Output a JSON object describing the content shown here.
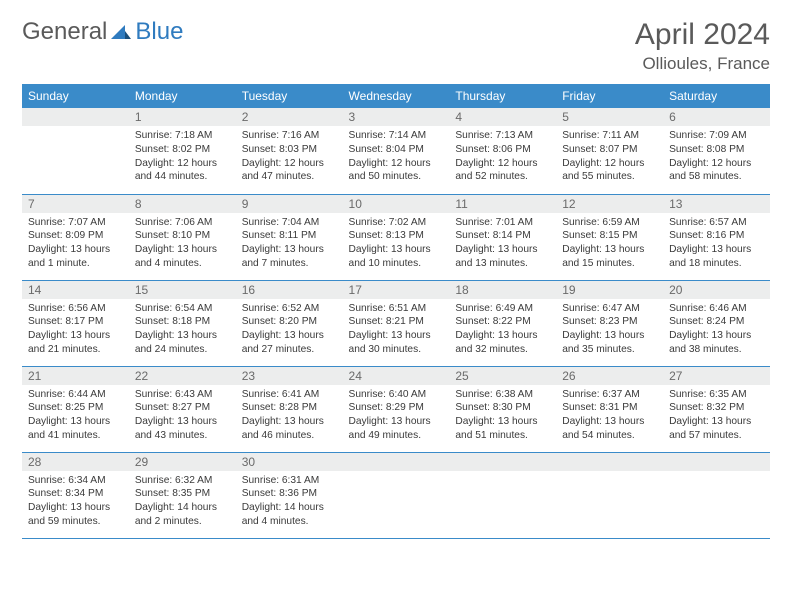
{
  "brand": {
    "part1": "General",
    "part2": "Blue"
  },
  "title": "April 2024",
  "location": "Ollioules, France",
  "colors": {
    "header_bg": "#3a8bc9",
    "header_text": "#ffffff",
    "daynum_bg": "#eceded",
    "daynum_text": "#6a6a6a",
    "border": "#3a8bc9",
    "logo_gray": "#5a5a5a",
    "logo_blue": "#2f7bbf"
  },
  "weekdays": [
    "Sunday",
    "Monday",
    "Tuesday",
    "Wednesday",
    "Thursday",
    "Friday",
    "Saturday"
  ],
  "weeks": [
    [
      {
        "n": "",
        "lines": [
          "",
          "",
          "",
          ""
        ]
      },
      {
        "n": "1",
        "lines": [
          "Sunrise: 7:18 AM",
          "Sunset: 8:02 PM",
          "Daylight: 12 hours",
          "and 44 minutes."
        ]
      },
      {
        "n": "2",
        "lines": [
          "Sunrise: 7:16 AM",
          "Sunset: 8:03 PM",
          "Daylight: 12 hours",
          "and 47 minutes."
        ]
      },
      {
        "n": "3",
        "lines": [
          "Sunrise: 7:14 AM",
          "Sunset: 8:04 PM",
          "Daylight: 12 hours",
          "and 50 minutes."
        ]
      },
      {
        "n": "4",
        "lines": [
          "Sunrise: 7:13 AM",
          "Sunset: 8:06 PM",
          "Daylight: 12 hours",
          "and 52 minutes."
        ]
      },
      {
        "n": "5",
        "lines": [
          "Sunrise: 7:11 AM",
          "Sunset: 8:07 PM",
          "Daylight: 12 hours",
          "and 55 minutes."
        ]
      },
      {
        "n": "6",
        "lines": [
          "Sunrise: 7:09 AM",
          "Sunset: 8:08 PM",
          "Daylight: 12 hours",
          "and 58 minutes."
        ]
      }
    ],
    [
      {
        "n": "7",
        "lines": [
          "Sunrise: 7:07 AM",
          "Sunset: 8:09 PM",
          "Daylight: 13 hours",
          "and 1 minute."
        ]
      },
      {
        "n": "8",
        "lines": [
          "Sunrise: 7:06 AM",
          "Sunset: 8:10 PM",
          "Daylight: 13 hours",
          "and 4 minutes."
        ]
      },
      {
        "n": "9",
        "lines": [
          "Sunrise: 7:04 AM",
          "Sunset: 8:11 PM",
          "Daylight: 13 hours",
          "and 7 minutes."
        ]
      },
      {
        "n": "10",
        "lines": [
          "Sunrise: 7:02 AM",
          "Sunset: 8:13 PM",
          "Daylight: 13 hours",
          "and 10 minutes."
        ]
      },
      {
        "n": "11",
        "lines": [
          "Sunrise: 7:01 AM",
          "Sunset: 8:14 PM",
          "Daylight: 13 hours",
          "and 13 minutes."
        ]
      },
      {
        "n": "12",
        "lines": [
          "Sunrise: 6:59 AM",
          "Sunset: 8:15 PM",
          "Daylight: 13 hours",
          "and 15 minutes."
        ]
      },
      {
        "n": "13",
        "lines": [
          "Sunrise: 6:57 AM",
          "Sunset: 8:16 PM",
          "Daylight: 13 hours",
          "and 18 minutes."
        ]
      }
    ],
    [
      {
        "n": "14",
        "lines": [
          "Sunrise: 6:56 AM",
          "Sunset: 8:17 PM",
          "Daylight: 13 hours",
          "and 21 minutes."
        ]
      },
      {
        "n": "15",
        "lines": [
          "Sunrise: 6:54 AM",
          "Sunset: 8:18 PM",
          "Daylight: 13 hours",
          "and 24 minutes."
        ]
      },
      {
        "n": "16",
        "lines": [
          "Sunrise: 6:52 AM",
          "Sunset: 8:20 PM",
          "Daylight: 13 hours",
          "and 27 minutes."
        ]
      },
      {
        "n": "17",
        "lines": [
          "Sunrise: 6:51 AM",
          "Sunset: 8:21 PM",
          "Daylight: 13 hours",
          "and 30 minutes."
        ]
      },
      {
        "n": "18",
        "lines": [
          "Sunrise: 6:49 AM",
          "Sunset: 8:22 PM",
          "Daylight: 13 hours",
          "and 32 minutes."
        ]
      },
      {
        "n": "19",
        "lines": [
          "Sunrise: 6:47 AM",
          "Sunset: 8:23 PM",
          "Daylight: 13 hours",
          "and 35 minutes."
        ]
      },
      {
        "n": "20",
        "lines": [
          "Sunrise: 6:46 AM",
          "Sunset: 8:24 PM",
          "Daylight: 13 hours",
          "and 38 minutes."
        ]
      }
    ],
    [
      {
        "n": "21",
        "lines": [
          "Sunrise: 6:44 AM",
          "Sunset: 8:25 PM",
          "Daylight: 13 hours",
          "and 41 minutes."
        ]
      },
      {
        "n": "22",
        "lines": [
          "Sunrise: 6:43 AM",
          "Sunset: 8:27 PM",
          "Daylight: 13 hours",
          "and 43 minutes."
        ]
      },
      {
        "n": "23",
        "lines": [
          "Sunrise: 6:41 AM",
          "Sunset: 8:28 PM",
          "Daylight: 13 hours",
          "and 46 minutes."
        ]
      },
      {
        "n": "24",
        "lines": [
          "Sunrise: 6:40 AM",
          "Sunset: 8:29 PM",
          "Daylight: 13 hours",
          "and 49 minutes."
        ]
      },
      {
        "n": "25",
        "lines": [
          "Sunrise: 6:38 AM",
          "Sunset: 8:30 PM",
          "Daylight: 13 hours",
          "and 51 minutes."
        ]
      },
      {
        "n": "26",
        "lines": [
          "Sunrise: 6:37 AM",
          "Sunset: 8:31 PM",
          "Daylight: 13 hours",
          "and 54 minutes."
        ]
      },
      {
        "n": "27",
        "lines": [
          "Sunrise: 6:35 AM",
          "Sunset: 8:32 PM",
          "Daylight: 13 hours",
          "and 57 minutes."
        ]
      }
    ],
    [
      {
        "n": "28",
        "lines": [
          "Sunrise: 6:34 AM",
          "Sunset: 8:34 PM",
          "Daylight: 13 hours",
          "and 59 minutes."
        ]
      },
      {
        "n": "29",
        "lines": [
          "Sunrise: 6:32 AM",
          "Sunset: 8:35 PM",
          "Daylight: 14 hours",
          "and 2 minutes."
        ]
      },
      {
        "n": "30",
        "lines": [
          "Sunrise: 6:31 AM",
          "Sunset: 8:36 PM",
          "Daylight: 14 hours",
          "and 4 minutes."
        ]
      },
      {
        "n": "",
        "lines": [
          "",
          "",
          "",
          ""
        ]
      },
      {
        "n": "",
        "lines": [
          "",
          "",
          "",
          ""
        ]
      },
      {
        "n": "",
        "lines": [
          "",
          "",
          "",
          ""
        ]
      },
      {
        "n": "",
        "lines": [
          "",
          "",
          "",
          ""
        ]
      }
    ]
  ]
}
